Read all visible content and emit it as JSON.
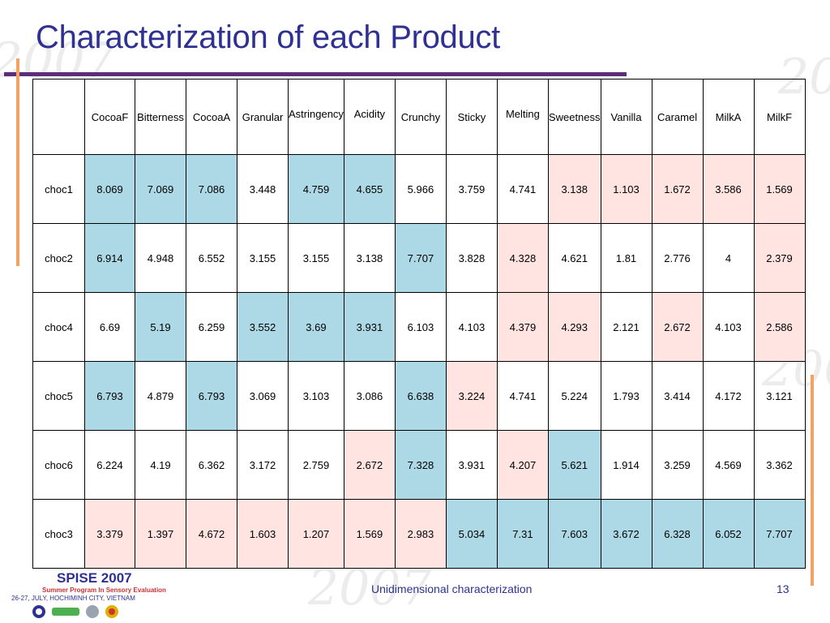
{
  "slide": {
    "title": "Characterization of each Product",
    "footer_center": "Unidimensional characterization",
    "page_number": "13",
    "logo_title": "SPISE 2007",
    "logo_subtitle": "Summer Program In Sensory Evaluation",
    "logo_date": "26-27, JULY, HOCHIMINH CITY, VIETNAM"
  },
  "colors": {
    "blue": "#add8e6",
    "pink": "#ffe4e1",
    "title": "#2e3192"
  },
  "table": {
    "headers": [
      "",
      "CocoaF",
      "Bitterness",
      "CocoaA",
      "Granular",
      "Astringency",
      "Acidity",
      "Crunchy",
      "Sticky",
      "Melting",
      "Sweetness",
      "Vanilla",
      "Caramel",
      "MilkA",
      "MilkF"
    ],
    "rows": [
      {
        "cells": [
          "choc1",
          "8.069",
          "7.069",
          "7.086",
          "3.448",
          "4.759",
          "4.655",
          "5.966",
          "3.759",
          "4.741",
          "3.138",
          "1.103",
          "1.672",
          "3.586",
          "1.569"
        ],
        "colors": [
          "",
          "blue",
          "blue",
          "blue",
          "",
          "blue",
          "blue",
          "",
          "",
          "",
          "pink",
          "pink",
          "pink",
          "pink",
          "pink"
        ]
      },
      {
        "cells": [
          "choc2",
          "6.914",
          "4.948",
          "6.552",
          "3.155",
          "3.155",
          "3.138",
          "7.707",
          "3.828",
          "4.328",
          "4.621",
          "1.81",
          "2.776",
          "4",
          "2.379"
        ],
        "colors": [
          "",
          "blue",
          "",
          "",
          "",
          "",
          "",
          "blue",
          "",
          "pink",
          "",
          "",
          "",
          "",
          "pink"
        ]
      },
      {
        "cells": [
          "choc4",
          "6.69",
          "5.19",
          "6.259",
          "3.552",
          "3.69",
          "3.931",
          "6.103",
          "4.103",
          "4.379",
          "4.293",
          "2.121",
          "2.672",
          "4.103",
          "2.586"
        ],
        "colors": [
          "",
          "",
          "blue",
          "",
          "blue",
          "blue",
          "blue",
          "",
          "",
          "pink",
          "pink",
          "",
          "pink",
          "",
          "pink"
        ]
      },
      {
        "cells": [
          "choc5",
          "6.793",
          "4.879",
          "6.793",
          "3.069",
          "3.103",
          "3.086",
          "6.638",
          "3.224",
          "4.741",
          "5.224",
          "1.793",
          "3.414",
          "4.172",
          "3.121"
        ],
        "colors": [
          "",
          "blue",
          "",
          "blue",
          "",
          "",
          "",
          "blue",
          "pink",
          "",
          "",
          "",
          "",
          "",
          ""
        ]
      },
      {
        "cells": [
          "choc6",
          "6.224",
          "4.19",
          "6.362",
          "3.172",
          "2.759",
          "2.672",
          "7.328",
          "3.931",
          "4.207",
          "5.621",
          "1.914",
          "3.259",
          "4.569",
          "3.362"
        ],
        "colors": [
          "",
          "",
          "",
          "",
          "",
          "",
          "pink",
          "blue",
          "",
          "pink",
          "blue",
          "",
          "",
          "",
          ""
        ]
      },
      {
        "cells": [
          "choc3",
          "3.379",
          "1.397",
          "4.672",
          "1.603",
          "1.207",
          "1.569",
          "2.983",
          "5.034",
          "7.31",
          "7.603",
          "3.672",
          "6.328",
          "6.052",
          "7.707"
        ],
        "colors": [
          "",
          "pink",
          "pink",
          "pink",
          "pink",
          "pink",
          "pink",
          "pink",
          "blue",
          "blue",
          "blue",
          "blue",
          "blue",
          "blue",
          "blue"
        ]
      }
    ]
  }
}
